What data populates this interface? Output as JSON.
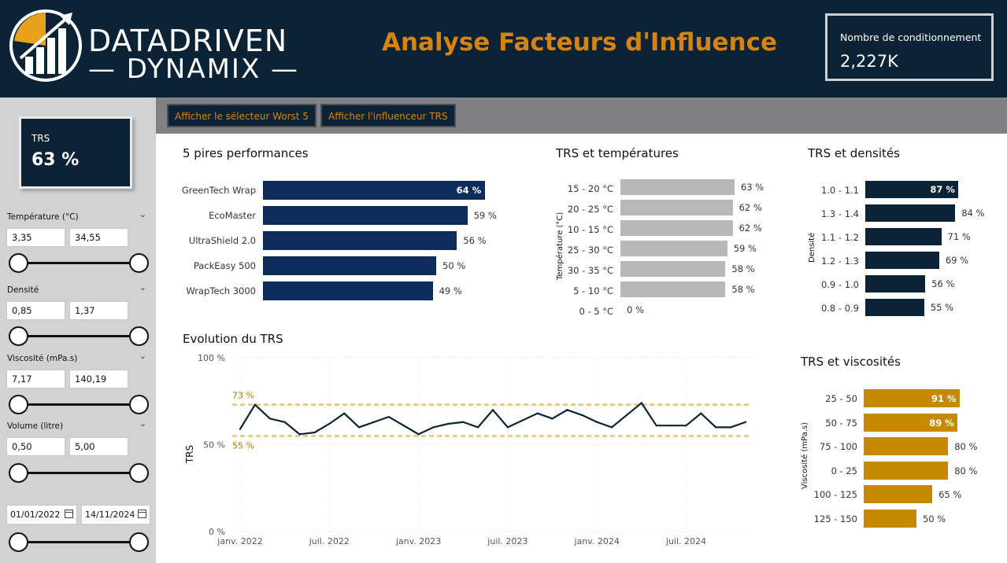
{
  "header": {
    "logo_line1": "DATADRIVEN",
    "logo_line2": "— DYNAMIX —",
    "title": "Analyse Facteurs d'Influence",
    "kpi_label": "Nombre de conditionnement",
    "kpi_value": "2,227K"
  },
  "colors": {
    "navy": "#0c2235",
    "bar_navy": "#0e2d5a",
    "bar_dark": "#0c2235",
    "bar_gray": "#b8b8b8",
    "gold": "#c58a00",
    "accent": "#d4840f"
  },
  "sidebar": {
    "kpi_label": "TRS",
    "kpi_value": "63 %",
    "filters": [
      {
        "title": "Température (°C)",
        "min": "3,35",
        "max": "34,55"
      },
      {
        "title": "Densité",
        "min": "0,85",
        "max": "1,37"
      },
      {
        "title": "Viscosité (mPa.s)",
        "min": "7,17",
        "max": "140,19"
      },
      {
        "title": "Volume (litre)",
        "min": "0,50",
        "max": "5,00"
      }
    ],
    "date_from": "01/01/2022",
    "date_to": "14/11/2024"
  },
  "toolbar": {
    "btn_worst5": "Afficher le sélecteur Worst 5",
    "btn_influencer": "Afficher l'influenceur TRS"
  },
  "worst5": {
    "title": "5 pires performances",
    "items": [
      {
        "label": "GreenTech Wrap",
        "value": 64,
        "text": "64 %"
      },
      {
        "label": "EcoMaster",
        "value": 59,
        "text": "59 %"
      },
      {
        "label": "UltraShield 2.0",
        "value": 56,
        "text": "56 %"
      },
      {
        "label": "PackEasy 500",
        "value": 50,
        "text": "50 %"
      },
      {
        "label": "WrapTech 3000",
        "value": 49,
        "text": "49 %"
      }
    ]
  },
  "temps": {
    "title": "TRS et températures",
    "axis_title": "Température (°C)",
    "items": [
      {
        "label": "15 - 20 °C",
        "value": 63,
        "text": "63 %"
      },
      {
        "label": "20 - 25 °C",
        "value": 62,
        "text": "62 %"
      },
      {
        "label": "10 - 15 °C",
        "value": 62,
        "text": "62 %"
      },
      {
        "label": "25 - 30 °C",
        "value": 59,
        "text": "59 %"
      },
      {
        "label": "30 - 35 °C",
        "value": 58,
        "text": "58 %"
      },
      {
        "label": "5 - 10 °C",
        "value": 58,
        "text": "58 %"
      },
      {
        "label": "0 - 5 °C",
        "value": 0,
        "text": "0 %"
      }
    ]
  },
  "dens": {
    "title": "TRS et densités",
    "axis_title": "Densité",
    "items": [
      {
        "label": "1.0 - 1.1",
        "value": 87,
        "text": "87 %"
      },
      {
        "label": "1.3 - 1.4",
        "value": 84,
        "text": "84 %"
      },
      {
        "label": "1.1 - 1.2",
        "value": 71,
        "text": "71 %"
      },
      {
        "label": "1.2 - 1.3",
        "value": 69,
        "text": "69 %"
      },
      {
        "label": "0.9 - 1.0",
        "value": 56,
        "text": "56 %"
      },
      {
        "label": "0.8 - 0.9",
        "value": 55,
        "text": "55 %"
      }
    ]
  },
  "visc": {
    "title": "TRS et viscosités",
    "axis_title": "Viscosité (mPa.s)",
    "items": [
      {
        "label": "25 - 50",
        "value": 91,
        "text": "91 %"
      },
      {
        "label": "50 - 75",
        "value": 89,
        "text": "89 %"
      },
      {
        "label": "75 - 100",
        "value": 80,
        "text": "80 %"
      },
      {
        "label": "0 - 25",
        "value": 80,
        "text": "80 %"
      },
      {
        "label": "100 - 125",
        "value": 65,
        "text": "65 %"
      },
      {
        "label": "125 - 150",
        "value": 50,
        "text": "50 %"
      }
    ]
  },
  "chart_data": {
    "type": "line",
    "title": "Evolution du TRS",
    "ylabel": "TRS",
    "xlabel": "",
    "ylim": [
      0,
      100
    ],
    "y_ticks": [
      "0 %",
      "50 %",
      "100 %"
    ],
    "x_ticks": [
      "janv. 2022",
      "juil. 2022",
      "janv. 2023",
      "juil. 2023",
      "janv. 2024",
      "juil. 2024"
    ],
    "reference_lines": [
      {
        "value": 73,
        "text": "73 %"
      },
      {
        "value": 55,
        "text": "55 %"
      }
    ],
    "x": [
      "2022-01",
      "2022-02",
      "2022-03",
      "2022-04",
      "2022-05",
      "2022-06",
      "2022-07",
      "2022-08",
      "2022-09",
      "2022-10",
      "2022-11",
      "2022-12",
      "2023-01",
      "2023-02",
      "2023-03",
      "2023-04",
      "2023-05",
      "2023-06",
      "2023-07",
      "2023-08",
      "2023-09",
      "2023-10",
      "2023-11",
      "2023-12",
      "2024-01",
      "2024-02",
      "2024-03",
      "2024-04",
      "2024-05",
      "2024-06",
      "2024-07",
      "2024-08",
      "2024-09",
      "2024-10",
      "2024-11"
    ],
    "series": [
      {
        "values": [
          59,
          73,
          65,
          63,
          56,
          57,
          62,
          68,
          60,
          63,
          66,
          61,
          56,
          60,
          62,
          63,
          60,
          70,
          60,
          64,
          68,
          65,
          70,
          67,
          63,
          60,
          67,
          74,
          61,
          61,
          61,
          68,
          60,
          60,
          63
        ]
      }
    ]
  }
}
